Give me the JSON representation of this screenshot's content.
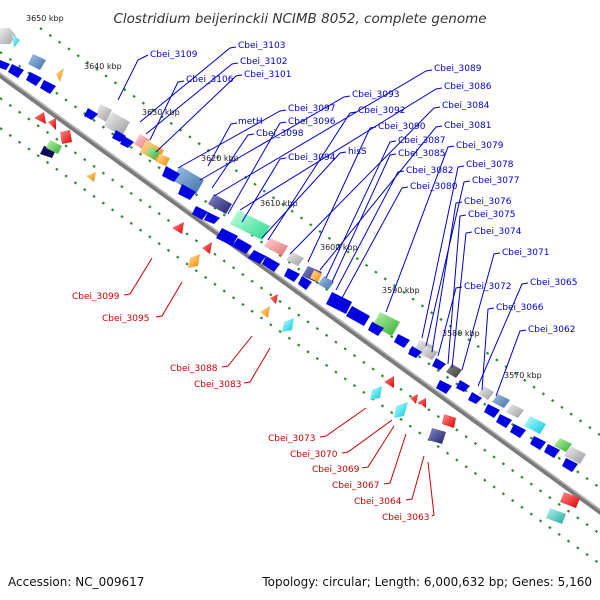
{
  "title": "Clostridium beijerinckii NCIMB 8052, complete genome",
  "footer": {
    "accession": "Accession: NC_009617",
    "summary": "Topology: circular; Length: 6,000,632 bp; Genes: 5,160"
  },
  "kbp_labels": [
    "3650 kbp",
    "3640 kbp",
    "3630 kbp",
    "3620 kbp",
    "3610 kbp",
    "3600 kbp",
    "3590 kbp",
    "3580 kbp",
    "3570 kbp"
  ],
  "gene_labels_forward": [
    "Cbei_3109",
    "Cbei_3103",
    "Cbei_3102",
    "Cbei_3106",
    "Cbei_3101",
    "Cbei_3097",
    "Cbei_3093",
    "Cbei_3089",
    "Cbei_3086",
    "Cbei_3096",
    "metH",
    "Cbei_3092",
    "Cbei_3084",
    "Cbei_3098",
    "Cbei_3090",
    "Cbei_3081",
    "Cbei_3087",
    "hisS",
    "Cbei_3094",
    "Cbei_3085",
    "Cbei_3079",
    "Cbei_3082",
    "Cbei_3078",
    "Cbei_3077",
    "Cbei_3080",
    "Cbei_3076",
    "Cbei_3075",
    "Cbei_3074",
    "Cbei_3071",
    "Cbei_3072",
    "Cbei_3065",
    "Cbei_3066",
    "Cbei_3062"
  ],
  "gene_labels_reverse": [
    "Cbei_3099",
    "Cbei_3095",
    "Cbei_3088",
    "Cbei_3083",
    "Cbei_3073",
    "Cbei_3070",
    "Cbei_3069",
    "Cbei_3067",
    "Cbei_3064",
    "Cbei_3063"
  ],
  "colors": {
    "backbone": "#7a7a7a",
    "forward_gene": "#0000e0",
    "reverse_gene": "#ee0000",
    "forward_label": "#0000cc",
    "reverse_label": "#cc0000",
    "tick_dash": "#2e8b2e"
  }
}
